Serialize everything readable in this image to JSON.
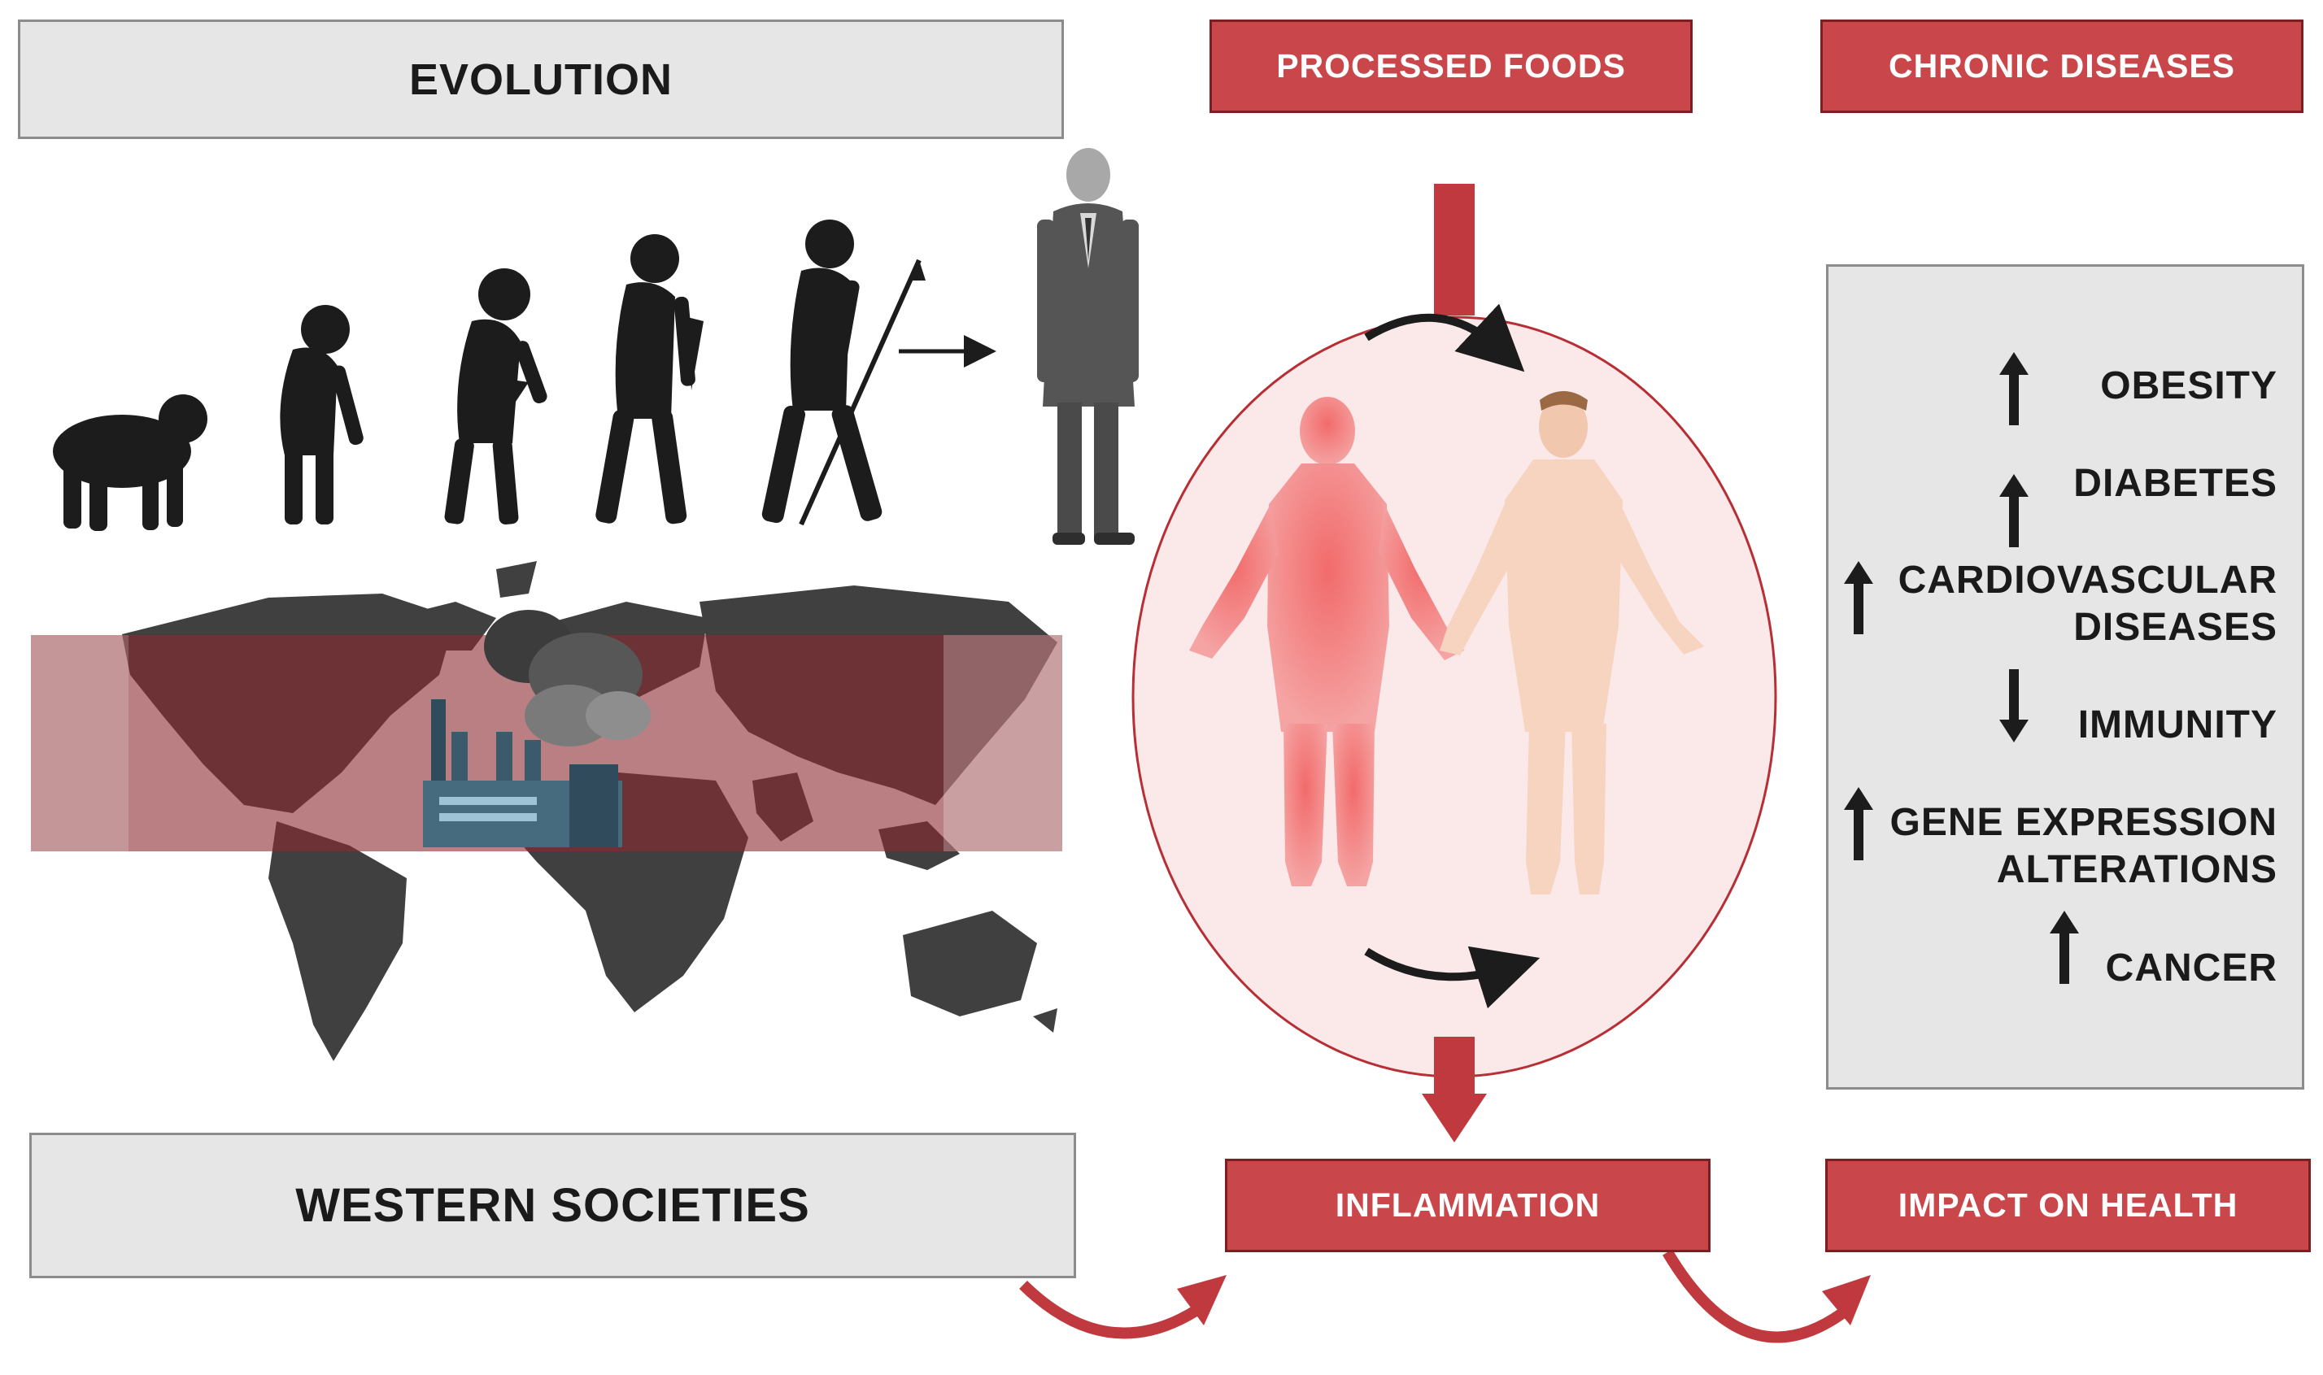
{
  "evolution": {
    "title": "EVOLUTION"
  },
  "western": {
    "title": "WESTERN SOCIETIES"
  },
  "processed_foods": {
    "title": "PROCESSED FOODS"
  },
  "chronic_diseases": {
    "title": "CHRONIC DISEASES",
    "items": [
      {
        "label": "OBESITY",
        "direction": "up"
      },
      {
        "label": "DIABETES",
        "direction": "up"
      },
      {
        "label_line1": "CARDIOVASCULAR",
        "label_line2": "DISEASES",
        "direction": "up"
      },
      {
        "label": "IMMUNITY",
        "direction": "down"
      },
      {
        "label_line1": "GENE EXPRESSION",
        "label_line2": "ALTERATIONS",
        "direction": "up"
      },
      {
        "label": "CANCER",
        "direction": "up"
      }
    ]
  },
  "inflammation": {
    "title": "INFLAMMATION"
  },
  "impact": {
    "title": "IMPACT ON HEALTH"
  },
  "colors": {
    "accent_red": "#c9474b",
    "dark_red_border": "#7a1f22",
    "grey_box": "#e6e6e6",
    "silhouette": "#1c1c1c",
    "map_land": "#404040",
    "band_red": "#8b2a2e",
    "circle_fill": "#fbe9ea"
  },
  "icons": [
    "ape-silhouette-icon",
    "hominid-silhouette-icon",
    "early-human-silhouette-icon",
    "human-with-torch-icon",
    "human-with-spear-icon",
    "businessman-icon",
    "world-map-icon",
    "factory-icon",
    "inflamed-body-icon",
    "healthy-body-icon",
    "up-arrow-icon",
    "down-arrow-icon",
    "curved-arrow-icon"
  ]
}
